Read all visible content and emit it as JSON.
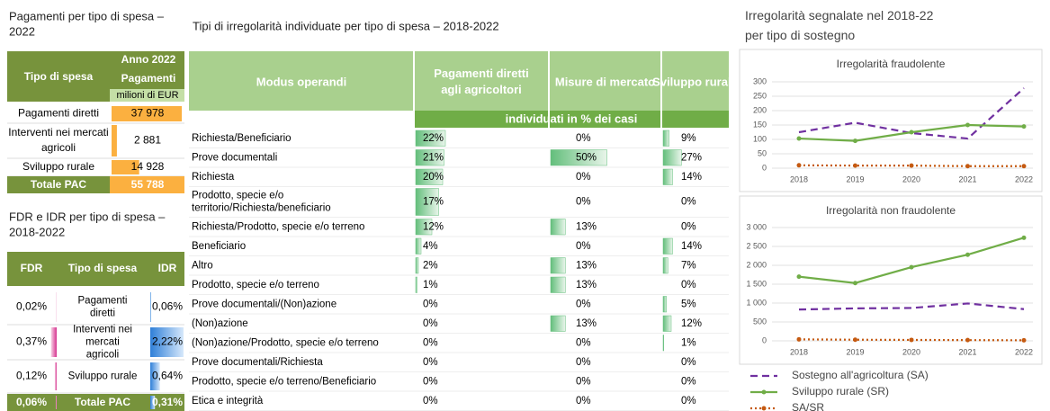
{
  "payments": {
    "title": "Pagamenti per tipo di spesa – 2022",
    "header": {
      "type": "Tipo di spesa",
      "year": "Anno 2022",
      "measure": "Pagamenti",
      "unit": "milioni di EUR"
    },
    "rows": [
      {
        "label": "Pagamenti diretti",
        "value": 37978,
        "value_label": "37 978"
      },
      {
        "label": "Interventi nei mercati agricoli",
        "value": 2881,
        "value_label": "2 881"
      },
      {
        "label": "Sviluppo rurale",
        "value": 14928,
        "value_label": "14 928"
      }
    ],
    "total": {
      "label": "Totale PAC",
      "value": 55788,
      "value_label": "55 788"
    }
  },
  "rates": {
    "title": "FDR e IDR per tipo di spesa – 2018-2022",
    "header": {
      "fdr": "FDR",
      "type": "Tipo di spesa",
      "idr": "IDR"
    },
    "rows": [
      {
        "label": "Pagamenti diretti",
        "fdr": {
          "value": 0.02,
          "label": "0,02%"
        },
        "idr": {
          "value": 0.06,
          "label": "0,06%"
        }
      },
      {
        "label": "Interventi nei mercati agricoli",
        "fdr": {
          "value": 0.37,
          "label": "0,37%"
        },
        "idr": {
          "value": 2.22,
          "label": "2,22%"
        }
      },
      {
        "label": "Sviluppo rurale",
        "fdr": {
          "value": 0.12,
          "label": "0,12%"
        },
        "idr": {
          "value": 0.64,
          "label": "0,64%"
        }
      }
    ],
    "total": {
      "label": "Totale PAC",
      "fdr": {
        "value": 0.06,
        "label": "0,06%"
      },
      "idr": {
        "value": 0.31,
        "label": "0,31%"
      }
    }
  },
  "irregularities": {
    "title": "Tipi di irregolarità individuate per tipo di spesa – 2018-2022",
    "header": [
      "Modus operandi",
      "Pagamenti diretti agli agricoltori",
      "Misure di mercato",
      "Sviluppo rurale"
    ],
    "subheader": "individuati in % dei casi",
    "rows": [
      {
        "label": "Richiesta/Beneficiario",
        "values": [
          22,
          0,
          9
        ],
        "value_labels": [
          "22%",
          "0%",
          "9%"
        ]
      },
      {
        "label": "Prove documentali",
        "values": [
          21,
          50,
          27
        ],
        "value_labels": [
          "21%",
          "50%",
          "27%"
        ]
      },
      {
        "label": "Richiesta",
        "values": [
          20,
          0,
          14
        ],
        "value_labels": [
          "20%",
          "0%",
          "14%"
        ]
      },
      {
        "label": "Prodotto, specie e/o territorio/Richiesta/beneficiario",
        "values": [
          17,
          0,
          0
        ],
        "value_labels": [
          "17%",
          "0%",
          "0%"
        ]
      },
      {
        "label": "Richiesta/Prodotto, specie e/o terreno",
        "values": [
          12,
          13,
          0
        ],
        "value_labels": [
          "12%",
          "13%",
          "0%"
        ]
      },
      {
        "label": "Beneficiario",
        "values": [
          4,
          0,
          14
        ],
        "value_labels": [
          "4%",
          "0%",
          "14%"
        ]
      },
      {
        "label": "Altro",
        "values": [
          2,
          13,
          7
        ],
        "value_labels": [
          "2%",
          "13%",
          "7%"
        ]
      },
      {
        "label": "Prodotto, specie e/o terreno",
        "values": [
          1,
          13,
          0
        ],
        "value_labels": [
          "1%",
          "13%",
          "0%"
        ]
      },
      {
        "label": "Prove documentali/(Non)azione",
        "values": [
          0,
          0,
          5
        ],
        "value_labels": [
          "0%",
          "0%",
          "5%"
        ]
      },
      {
        "label": "(Non)azione",
        "values": [
          0,
          13,
          12
        ],
        "value_labels": [
          "0%",
          "13%",
          "12%"
        ]
      },
      {
        "label": "(Non)azione/Prodotto, specie e/o terreno",
        "values": [
          0,
          0,
          1
        ],
        "value_labels": [
          "0%",
          "0%",
          "1%"
        ]
      },
      {
        "label": "Prove documentali/Richiesta",
        "values": [
          0,
          0,
          0
        ],
        "value_labels": [
          "0%",
          "0%",
          "0%"
        ]
      },
      {
        "label": "Prodotto, specie e/o terreno/Beneficiario",
        "values": [
          0,
          0,
          0
        ],
        "value_labels": [
          "0%",
          "0%",
          "0%"
        ]
      },
      {
        "label": "Etica e integrità",
        "values": [
          0,
          0,
          0
        ],
        "value_labels": [
          "0%",
          "0%",
          "0%"
        ]
      }
    ]
  },
  "charts": {
    "title": "Irregolarità segnalate nel 2018-22 per tipo di sostegno",
    "legend": [
      {
        "name": "Sostegno all'agricoltura (SA)",
        "color": "#7030a0",
        "style": "dashed"
      },
      {
        "name": "Sviluppo rurale (SR)",
        "color": "#70ad47",
        "style": "solid"
      },
      {
        "name": "SA/SR",
        "color": "#c55a11",
        "style": "dotted"
      }
    ],
    "panels": [
      {
        "type": "line",
        "title": "Irregolarità fraudolente",
        "categories": [
          "2018",
          "2019",
          "2020",
          "2021",
          "2022"
        ],
        "ylim": [
          0,
          300
        ],
        "yticks": [
          0,
          50,
          100,
          150,
          200,
          250,
          300
        ],
        "grid": true,
        "series": [
          {
            "values": [
              125,
              158,
              122,
              103,
              278
            ]
          },
          {
            "values": [
              103,
              95,
              125,
              150,
              145
            ]
          },
          {
            "values": [
              10,
              9,
              9,
              7,
              7
            ]
          }
        ]
      },
      {
        "type": "line",
        "title": "Irregolarità non fraudolente",
        "categories": [
          "2018",
          "2019",
          "2020",
          "2021",
          "2022"
        ],
        "ylim": [
          0,
          3000
        ],
        "yticks": [
          0,
          500,
          {
            "value": 1000,
            "label": "1 000"
          },
          {
            "value": 1500,
            "label": "1 500"
          },
          {
            "value": 2000,
            "label": "2 000"
          },
          {
            "value": 2500,
            "label": "2 500"
          },
          {
            "value": 3000,
            "label": "3 000"
          }
        ],
        "grid": true,
        "series": [
          {
            "values": [
              830,
              860,
              870,
              990,
              840
            ]
          },
          {
            "values": [
              1700,
              1530,
              1950,
              2280,
              2730
            ]
          },
          {
            "values": [
              40,
              30,
              25,
              20,
              15
            ]
          }
        ]
      }
    ]
  }
}
